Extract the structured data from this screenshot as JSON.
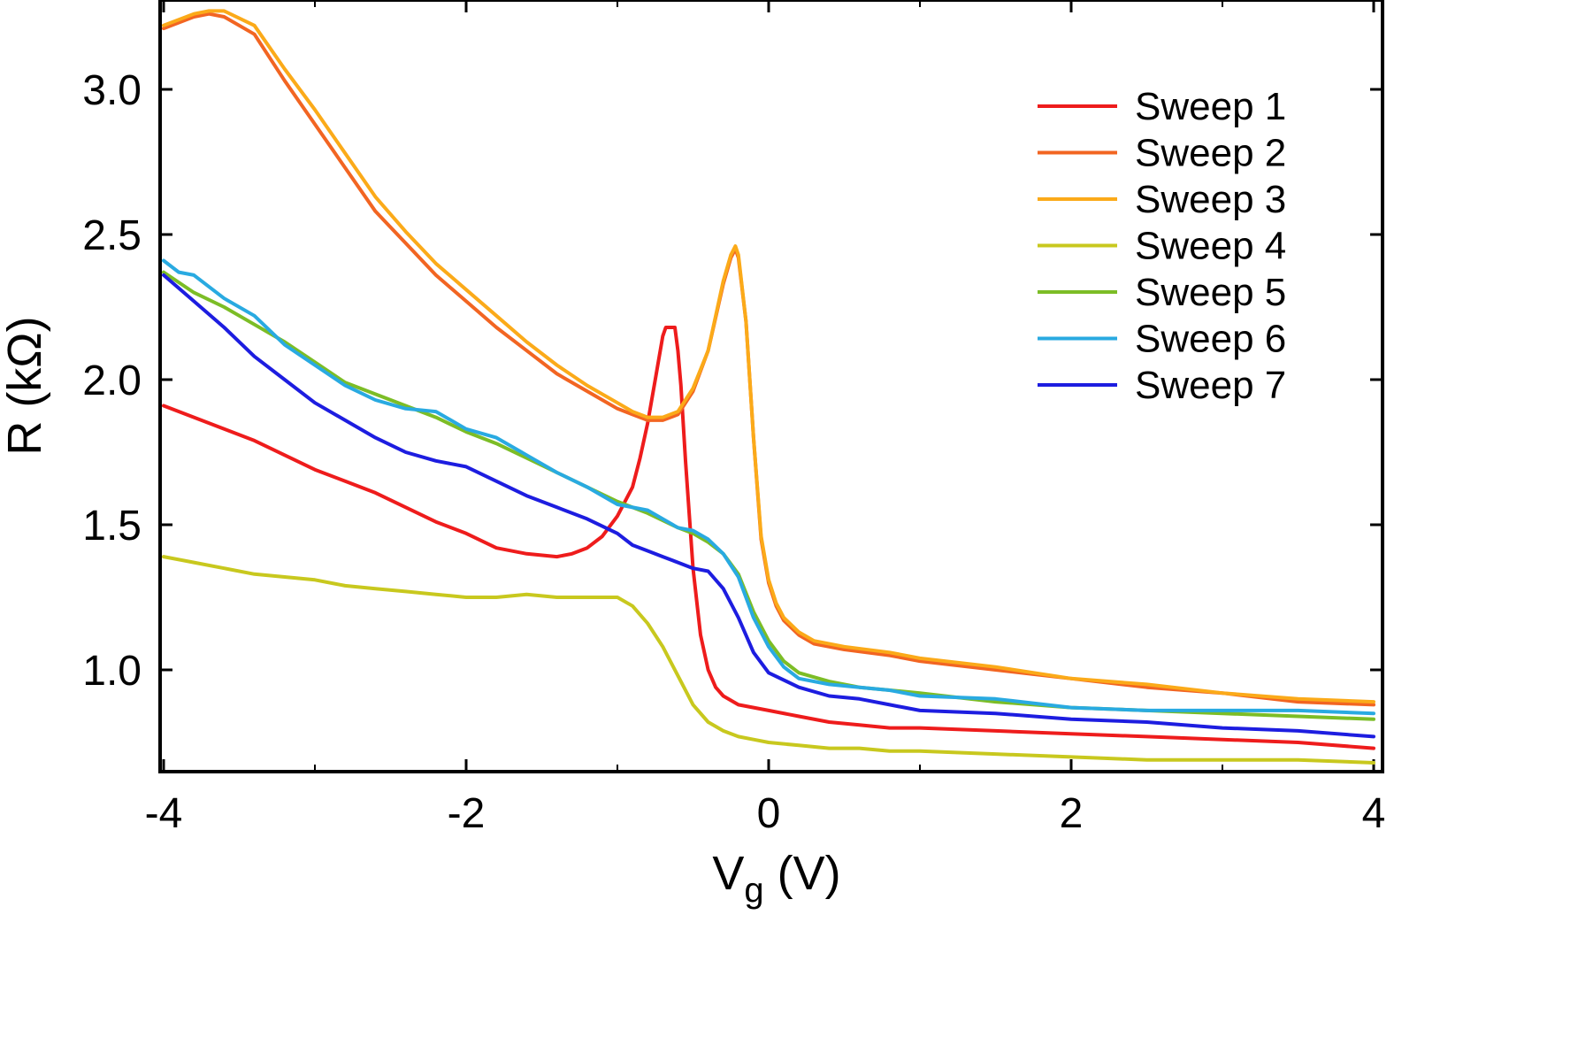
{
  "chart_data": {
    "type": "line",
    "title": "",
    "xlabel": "V",
    "xlabel_subscript": "g",
    "xlabel_unit": " (V)",
    "ylabel": "R (kΩ)",
    "xlim": [
      -4,
      4
    ],
    "ylim": [
      0.65,
      3.3
    ],
    "xticks": [
      -4,
      -2,
      0,
      2,
      4
    ],
    "xtick_labels": [
      "-4",
      "-2",
      "0",
      "2",
      "4"
    ],
    "yticks": [
      1.0,
      1.5,
      2.0,
      2.5,
      3.0
    ],
    "ytick_labels": [
      "1.0",
      "1.5",
      "2.0",
      "2.5",
      "3.0"
    ],
    "grid": false,
    "legend_position": "top-right",
    "series": [
      {
        "name": "Sweep 1",
        "color": "#ee1c1c",
        "x": [
          -4,
          -3.8,
          -3.6,
          -3.4,
          -3.2,
          -3,
          -2.8,
          -2.6,
          -2.4,
          -2.2,
          -2,
          -1.8,
          -1.6,
          -1.4,
          -1.3,
          -1.2,
          -1.1,
          -1.0,
          -0.9,
          -0.85,
          -0.8,
          -0.75,
          -0.7,
          -0.68,
          -0.65,
          -0.62,
          -0.6,
          -0.58,
          -0.55,
          -0.5,
          -0.45,
          -0.4,
          -0.35,
          -0.3,
          -0.2,
          -0.1,
          0,
          0.2,
          0.4,
          0.6,
          0.8,
          1.0,
          1.5,
          2.0,
          2.5,
          3.0,
          3.5,
          4.0
        ],
        "values": [
          1.91,
          1.87,
          1.83,
          1.79,
          1.74,
          1.69,
          1.65,
          1.61,
          1.56,
          1.51,
          1.47,
          1.42,
          1.4,
          1.39,
          1.4,
          1.42,
          1.46,
          1.53,
          1.63,
          1.73,
          1.85,
          2.0,
          2.15,
          2.18,
          2.18,
          2.18,
          2.1,
          1.98,
          1.72,
          1.35,
          1.12,
          1.0,
          0.94,
          0.91,
          0.88,
          0.87,
          0.86,
          0.84,
          0.82,
          0.81,
          0.8,
          0.8,
          0.79,
          0.78,
          0.77,
          0.76,
          0.75,
          0.73
        ]
      },
      {
        "name": "Sweep 2",
        "color": "#f26522",
        "x": [
          -4,
          -3.8,
          -3.7,
          -3.6,
          -3.4,
          -3.2,
          -3.0,
          -2.8,
          -2.6,
          -2.4,
          -2.2,
          -2.0,
          -1.8,
          -1.6,
          -1.4,
          -1.2,
          -1.0,
          -0.9,
          -0.8,
          -0.7,
          -0.6,
          -0.5,
          -0.4,
          -0.3,
          -0.25,
          -0.22,
          -0.2,
          -0.15,
          -0.1,
          -0.05,
          0,
          0.05,
          0.1,
          0.2,
          0.3,
          0.5,
          0.8,
          1.0,
          1.5,
          2.0,
          2.5,
          3.0,
          3.5,
          4.0
        ],
        "values": [
          3.21,
          3.25,
          3.26,
          3.25,
          3.19,
          3.03,
          2.88,
          2.73,
          2.58,
          2.47,
          2.36,
          2.27,
          2.18,
          2.1,
          2.02,
          1.96,
          1.9,
          1.88,
          1.86,
          1.86,
          1.88,
          1.96,
          2.1,
          2.33,
          2.42,
          2.45,
          2.42,
          2.2,
          1.8,
          1.45,
          1.3,
          1.22,
          1.17,
          1.12,
          1.09,
          1.07,
          1.05,
          1.03,
          1.0,
          0.97,
          0.94,
          0.92,
          0.89,
          0.88
        ]
      },
      {
        "name": "Sweep 3",
        "color": "#fbaa19",
        "x": [
          -4,
          -3.8,
          -3.7,
          -3.6,
          -3.4,
          -3.2,
          -3.0,
          -2.8,
          -2.6,
          -2.4,
          -2.2,
          -2.0,
          -1.8,
          -1.6,
          -1.4,
          -1.2,
          -1.0,
          -0.9,
          -0.8,
          -0.7,
          -0.6,
          -0.5,
          -0.4,
          -0.3,
          -0.25,
          -0.22,
          -0.2,
          -0.15,
          -0.1,
          -0.05,
          0,
          0.05,
          0.1,
          0.2,
          0.3,
          0.5,
          0.8,
          1.0,
          1.5,
          2.0,
          2.5,
          3.0,
          3.5,
          4.0
        ],
        "values": [
          3.22,
          3.26,
          3.27,
          3.27,
          3.22,
          3.07,
          2.93,
          2.78,
          2.63,
          2.51,
          2.4,
          2.31,
          2.22,
          2.13,
          2.05,
          1.98,
          1.92,
          1.89,
          1.87,
          1.87,
          1.89,
          1.97,
          2.1,
          2.34,
          2.43,
          2.46,
          2.43,
          2.2,
          1.8,
          1.46,
          1.31,
          1.23,
          1.18,
          1.13,
          1.1,
          1.08,
          1.06,
          1.04,
          1.01,
          0.97,
          0.95,
          0.92,
          0.9,
          0.89
        ]
      },
      {
        "name": "Sweep 4",
        "color": "#c8c81e",
        "x": [
          -4,
          -3.8,
          -3.6,
          -3.4,
          -3.2,
          -3.0,
          -2.8,
          -2.6,
          -2.4,
          -2.2,
          -2.0,
          -1.8,
          -1.6,
          -1.4,
          -1.2,
          -1.0,
          -0.9,
          -0.8,
          -0.7,
          -0.6,
          -0.5,
          -0.4,
          -0.3,
          -0.2,
          -0.1,
          0,
          0.2,
          0.4,
          0.6,
          0.8,
          1.0,
          1.5,
          2.0,
          2.5,
          3.0,
          3.5,
          4.0
        ],
        "values": [
          1.39,
          1.37,
          1.35,
          1.33,
          1.32,
          1.31,
          1.29,
          1.28,
          1.27,
          1.26,
          1.25,
          1.25,
          1.26,
          1.25,
          1.25,
          1.25,
          1.22,
          1.16,
          1.08,
          0.98,
          0.88,
          0.82,
          0.79,
          0.77,
          0.76,
          0.75,
          0.74,
          0.73,
          0.73,
          0.72,
          0.72,
          0.71,
          0.7,
          0.69,
          0.69,
          0.69,
          0.68
        ]
      },
      {
        "name": "Sweep 5",
        "color": "#7cbd26",
        "x": [
          -4,
          -3.8,
          -3.6,
          -3.4,
          -3.2,
          -3.0,
          -2.8,
          -2.6,
          -2.4,
          -2.2,
          -2.0,
          -1.8,
          -1.6,
          -1.4,
          -1.2,
          -1.0,
          -0.8,
          -0.6,
          -0.5,
          -0.4,
          -0.3,
          -0.2,
          -0.1,
          0,
          0.1,
          0.2,
          0.4,
          0.6,
          1.0,
          1.5,
          2.0,
          2.5,
          3.0,
          3.5,
          4.0
        ],
        "values": [
          2.37,
          2.3,
          2.25,
          2.19,
          2.13,
          2.06,
          1.99,
          1.95,
          1.91,
          1.87,
          1.82,
          1.78,
          1.73,
          1.68,
          1.63,
          1.58,
          1.54,
          1.49,
          1.47,
          1.44,
          1.4,
          1.33,
          1.2,
          1.1,
          1.03,
          0.99,
          0.96,
          0.94,
          0.92,
          0.89,
          0.87,
          0.86,
          0.85,
          0.84,
          0.83
        ]
      },
      {
        "name": "Sweep 6",
        "color": "#29aae1",
        "x": [
          -4,
          -3.9,
          -3.8,
          -3.6,
          -3.4,
          -3.2,
          -3.0,
          -2.8,
          -2.6,
          -2.4,
          -2.2,
          -2.0,
          -1.8,
          -1.6,
          -1.4,
          -1.2,
          -1.0,
          -0.8,
          -0.6,
          -0.5,
          -0.4,
          -0.3,
          -0.2,
          -0.1,
          0,
          0.1,
          0.2,
          0.4,
          0.6,
          0.8,
          1.0,
          1.5,
          2.0,
          2.5,
          3.0,
          3.5,
          4.0
        ],
        "values": [
          2.41,
          2.37,
          2.36,
          2.28,
          2.22,
          2.12,
          2.05,
          1.98,
          1.93,
          1.9,
          1.89,
          1.83,
          1.8,
          1.74,
          1.68,
          1.63,
          1.57,
          1.55,
          1.49,
          1.48,
          1.45,
          1.4,
          1.32,
          1.18,
          1.08,
          1.01,
          0.97,
          0.95,
          0.94,
          0.93,
          0.91,
          0.9,
          0.87,
          0.86,
          0.86,
          0.86,
          0.85
        ]
      },
      {
        "name": "Sweep 7",
        "color": "#1d1de0",
        "x": [
          -4,
          -3.8,
          -3.6,
          -3.4,
          -3.2,
          -3.0,
          -2.8,
          -2.6,
          -2.4,
          -2.2,
          -2.0,
          -1.8,
          -1.6,
          -1.4,
          -1.2,
          -1.0,
          -0.9,
          -0.8,
          -0.7,
          -0.6,
          -0.5,
          -0.4,
          -0.3,
          -0.2,
          -0.1,
          0,
          0.2,
          0.4,
          0.6,
          0.8,
          1.0,
          1.5,
          2.0,
          2.5,
          3.0,
          3.5,
          4.0
        ],
        "values": [
          2.36,
          2.27,
          2.18,
          2.08,
          2.0,
          1.92,
          1.86,
          1.8,
          1.75,
          1.72,
          1.7,
          1.65,
          1.6,
          1.56,
          1.52,
          1.47,
          1.43,
          1.41,
          1.39,
          1.37,
          1.35,
          1.34,
          1.28,
          1.18,
          1.06,
          0.99,
          0.94,
          0.91,
          0.9,
          0.88,
          0.86,
          0.85,
          0.83,
          0.82,
          0.8,
          0.79,
          0.77
        ]
      }
    ]
  }
}
